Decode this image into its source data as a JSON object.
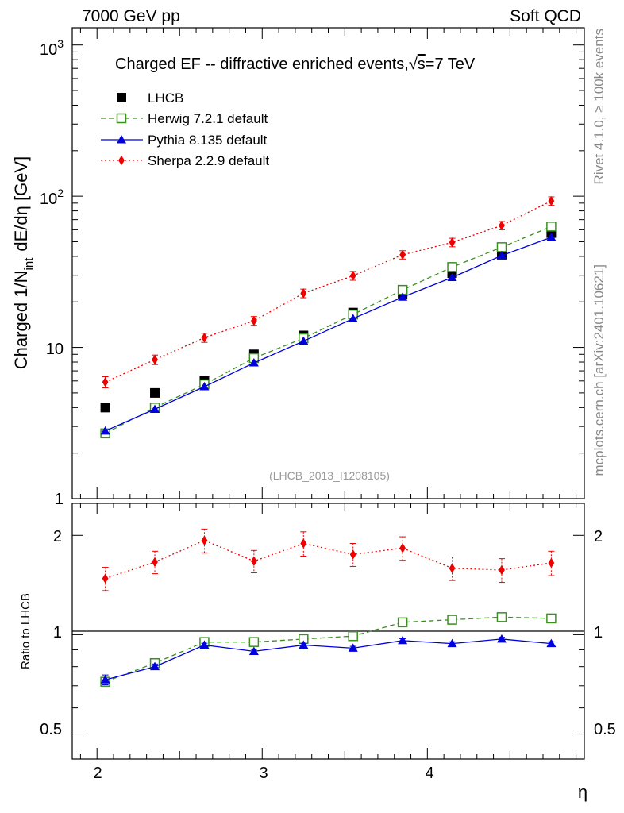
{
  "header": {
    "left": "7000 GeV pp",
    "right": "Soft QCD"
  },
  "side_labels": {
    "rivet": "Rivet 4.1.0, ≥ 100k events",
    "mcplots": "mcplots.cern.ch [arXiv:2401.10621]"
  },
  "colors": {
    "lhcb": "#000000",
    "herwig": "#3a8f1f",
    "pythia": "#0000dd",
    "sherpa": "#ee0000"
  },
  "chart_data": [
    {
      "type": "scatter",
      "title": "Charged EF -- diffractive enriched events, √s=7 TeV",
      "title_parts": {
        "main": "Charged EF -- diffractive enriched events,",
        "sqrt": "√",
        "s": "s",
        "rest": "=7 TeV"
      },
      "watermark": "(LHCB_2013_I1208105)",
      "ylabel": "Charged 1/N_int dE/dη [GeV]",
      "ylabel_parts": {
        "a": "Charged 1/N",
        "sub": "int",
        "b": "dE/dη [GeV]"
      },
      "yscale": "log",
      "ylim": [
        1,
        1300
      ],
      "xlim": [
        1.85,
        4.95
      ],
      "ytick_labels": {
        "1": "1",
        "10": "10",
        "100": "10",
        "100_exp": "2",
        "1000": "10",
        "1000_exp": "3"
      },
      "legend_position": "top-left",
      "x": [
        2.05,
        2.35,
        2.65,
        2.95,
        3.25,
        3.55,
        3.85,
        4.15,
        4.45,
        4.75
      ],
      "series": [
        {
          "name": "LHCB",
          "key": "lhcb",
          "style": "square-filled",
          "line": "none",
          "values": [
            4.0,
            5.0,
            6.0,
            9.0,
            12.0,
            17.0,
            22.5,
            31.0,
            41.0,
            57.0
          ]
        },
        {
          "name": "Herwig 7.2.1 default",
          "key": "herwig",
          "style": "square-open",
          "line": "dashed",
          "values": [
            2.7,
            4.0,
            5.7,
            8.5,
            11.5,
            16.5,
            24.0,
            34.0,
            46.0,
            63.0
          ]
        },
        {
          "name": "Pythia 8.135 default",
          "key": "pythia",
          "style": "triangle",
          "line": "solid",
          "values": [
            2.8,
            3.9,
            5.5,
            7.9,
            11.0,
            15.5,
            21.5,
            29.0,
            40.5,
            53.5
          ]
        },
        {
          "name": "Sherpa 2.2.9 default",
          "key": "sherpa",
          "style": "diamond",
          "line": "dotted",
          "values": [
            5.9,
            8.3,
            11.6,
            15.0,
            22.8,
            29.8,
            41.0,
            49.5,
            64.0,
            93.0
          ],
          "errors": [
            0.5,
            0.6,
            0.8,
            1.0,
            1.5,
            2.0,
            2.6,
            3.2,
            4.0,
            6.0
          ]
        }
      ]
    },
    {
      "type": "scatter",
      "ylabel": "Ratio to LHCB",
      "xlabel": "η",
      "yscale": "log",
      "ylim": [
        0.42,
        2.5
      ],
      "ytick_labels": [
        "0.5",
        "1",
        "2"
      ],
      "ytick_values": [
        0.5,
        1,
        2
      ],
      "xtick_labels": [
        "2",
        "3",
        "4"
      ],
      "xtick_values": [
        2,
        3,
        4
      ],
      "reference_line": 1,
      "x": [
        2.05,
        2.35,
        2.65,
        2.95,
        3.25,
        3.55,
        3.85,
        4.15,
        4.45,
        4.75
      ],
      "series": [
        {
          "name": "Herwig 7.2.1 default",
          "key": "herwig",
          "style": "square-open",
          "line": "dashed",
          "values": [
            0.72,
            0.82,
            0.95,
            0.95,
            0.97,
            0.99,
            1.09,
            1.11,
            1.13,
            1.12
          ]
        },
        {
          "name": "Pythia 8.135 default",
          "key": "pythia",
          "style": "triangle",
          "line": "solid",
          "values": [
            0.73,
            0.8,
            0.93,
            0.89,
            0.93,
            0.91,
            0.96,
            0.94,
            0.97,
            0.94
          ],
          "errors": [
            0.025,
            0.015,
            0.012,
            0.012,
            0.012,
            0.012,
            0.012,
            0.012,
            0.012,
            0.012
          ]
        },
        {
          "name": "Sherpa 2.2.9 default",
          "key": "sherpa",
          "style": "diamond",
          "line": "dotted",
          "values": [
            1.48,
            1.66,
            1.93,
            1.67,
            1.89,
            1.75,
            1.83,
            1.59,
            1.57,
            1.65
          ],
          "errors": [
            0.12,
            0.13,
            0.16,
            0.13,
            0.16,
            0.14,
            0.15,
            0.13,
            0.13,
            0.14
          ]
        }
      ]
    }
  ]
}
